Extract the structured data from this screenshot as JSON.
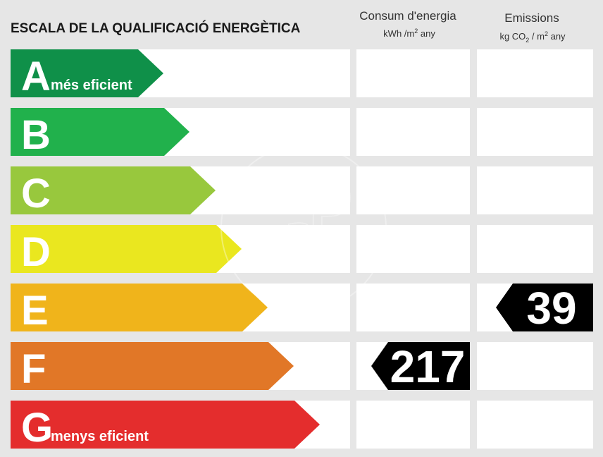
{
  "header": {
    "title": "ESCALA DE LA QUALIFICACIÓ ENERGÈTICA",
    "consumption": {
      "line1": "Consum d'energia",
      "unit": "kWh /m",
      "unit_sup": "2",
      "unit_suffix": " any"
    },
    "emissions": {
      "line1": "Emissions",
      "unit_prefix": "kg CO",
      "unit_sub": "2",
      "unit_mid": " / m",
      "unit_sup": "2",
      "unit_suffix": " any"
    }
  },
  "chart_data": {
    "type": "table",
    "ratings": [
      {
        "letter": "A",
        "label": "més eficient",
        "color": "#0f9049"
      },
      {
        "letter": "B",
        "label": "",
        "color": "#21b14c"
      },
      {
        "letter": "C",
        "label": "",
        "color": "#98c83d"
      },
      {
        "letter": "D",
        "label": "",
        "color": "#eae71f"
      },
      {
        "letter": "E",
        "label": "",
        "color": "#f0b41b"
      },
      {
        "letter": "F",
        "label": "",
        "color": "#e17727"
      },
      {
        "letter": "G",
        "label": "menys eficient",
        "color": "#e42d2d"
      }
    ],
    "consumption": {
      "value": "217",
      "rating": "F"
    },
    "emissions": {
      "value": "39",
      "rating": "E"
    }
  }
}
